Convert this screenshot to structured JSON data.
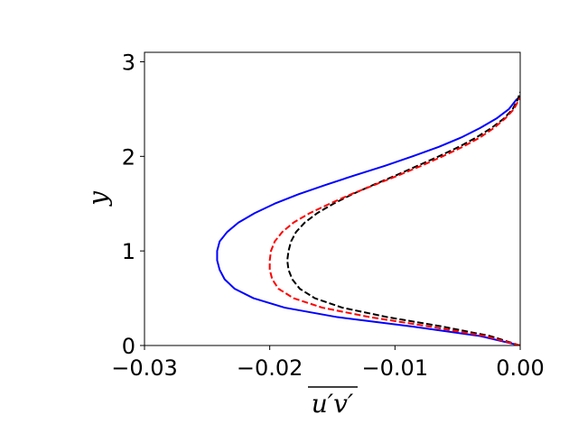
{
  "chart_data": {
    "type": "line",
    "title": "",
    "xlabel": "u′v′",
    "ylabel": "y",
    "xlim": [
      -0.03,
      0.0
    ],
    "ylim": [
      0,
      3.1
    ],
    "x_ticks": [
      -0.03,
      -0.02,
      -0.01,
      0.0
    ],
    "x_tick_labels": [
      "−0.03",
      "−0.02",
      "−0.01",
      "0.00"
    ],
    "y_ticks": [
      0,
      1,
      2,
      3
    ],
    "y_tick_labels": [
      "0",
      "1",
      "2",
      "3"
    ],
    "grid": false,
    "legend": "none",
    "series": [
      {
        "color": "#0000ff",
        "linestyle": "solid",
        "points": [
          [
            0.0,
            0.0
          ],
          [
            -0.0032,
            0.1
          ],
          [
            -0.0086,
            0.2
          ],
          [
            -0.0146,
            0.3
          ],
          [
            -0.0188,
            0.4
          ],
          [
            -0.0213,
            0.5
          ],
          [
            -0.0228,
            0.6
          ],
          [
            -0.0236,
            0.7
          ],
          [
            -0.024,
            0.8
          ],
          [
            -0.0242,
            0.9
          ],
          [
            -0.0242,
            1.0
          ],
          [
            -0.024,
            1.1
          ],
          [
            -0.0234,
            1.2
          ],
          [
            -0.0225,
            1.3
          ],
          [
            -0.0212,
            1.4
          ],
          [
            -0.0196,
            1.5
          ],
          [
            -0.0177,
            1.6
          ],
          [
            -0.0155,
            1.7
          ],
          [
            -0.0132,
            1.8
          ],
          [
            -0.0108,
            1.9
          ],
          [
            -0.0086,
            2.0
          ],
          [
            -0.0065,
            2.1
          ],
          [
            -0.0047,
            2.2
          ],
          [
            -0.0032,
            2.3
          ],
          [
            -0.0019,
            2.4
          ],
          [
            -0.0009,
            2.5
          ],
          [
            -0.0003,
            2.6
          ],
          [
            0.0,
            2.63
          ]
        ]
      },
      {
        "color": "#000000",
        "linestyle": "dashed",
        "points": [
          [
            0.0,
            0.0
          ],
          [
            -0.0024,
            0.1
          ],
          [
            -0.0062,
            0.2
          ],
          [
            -0.0106,
            0.3
          ],
          [
            -0.0142,
            0.4
          ],
          [
            -0.0164,
            0.5
          ],
          [
            -0.0176,
            0.6
          ],
          [
            -0.0182,
            0.7
          ],
          [
            -0.0185,
            0.8
          ],
          [
            -0.0186,
            0.9
          ],
          [
            -0.0185,
            1.0
          ],
          [
            -0.0183,
            1.1
          ],
          [
            -0.0179,
            1.2
          ],
          [
            -0.0172,
            1.3
          ],
          [
            -0.0162,
            1.4
          ],
          [
            -0.0149,
            1.5
          ],
          [
            -0.0134,
            1.6
          ],
          [
            -0.0117,
            1.7
          ],
          [
            -0.0099,
            1.8
          ],
          [
            -0.0082,
            1.9
          ],
          [
            -0.0065,
            2.0
          ],
          [
            -0.0049,
            2.1
          ],
          [
            -0.0035,
            2.2
          ],
          [
            -0.0023,
            2.3
          ],
          [
            -0.0013,
            2.4
          ],
          [
            -0.0006,
            2.5
          ],
          [
            -0.0002,
            2.6
          ],
          [
            0.0,
            2.68
          ]
        ]
      },
      {
        "color": "#ff0000",
        "linestyle": "dashed",
        "points": [
          [
            0.0,
            0.0
          ],
          [
            -0.0028,
            0.1
          ],
          [
            -0.0072,
            0.2
          ],
          [
            -0.012,
            0.3
          ],
          [
            -0.0158,
            0.4
          ],
          [
            -0.0181,
            0.5
          ],
          [
            -0.0193,
            0.6
          ],
          [
            -0.0198,
            0.7
          ],
          [
            -0.02,
            0.8
          ],
          [
            -0.02,
            0.9
          ],
          [
            -0.0199,
            1.0
          ],
          [
            -0.0196,
            1.1
          ],
          [
            -0.019,
            1.2
          ],
          [
            -0.0181,
            1.3
          ],
          [
            -0.0168,
            1.4
          ],
          [
            -0.0152,
            1.5
          ],
          [
            -0.0135,
            1.6
          ],
          [
            -0.0116,
            1.7
          ],
          [
            -0.0097,
            1.8
          ],
          [
            -0.0079,
            1.9
          ],
          [
            -0.0062,
            2.0
          ],
          [
            -0.0046,
            2.1
          ],
          [
            -0.0032,
            2.2
          ],
          [
            -0.0021,
            2.3
          ],
          [
            -0.0012,
            2.4
          ],
          [
            -0.0005,
            2.5
          ],
          [
            -0.0001,
            2.6
          ],
          [
            0.0,
            2.62
          ]
        ]
      }
    ]
  }
}
